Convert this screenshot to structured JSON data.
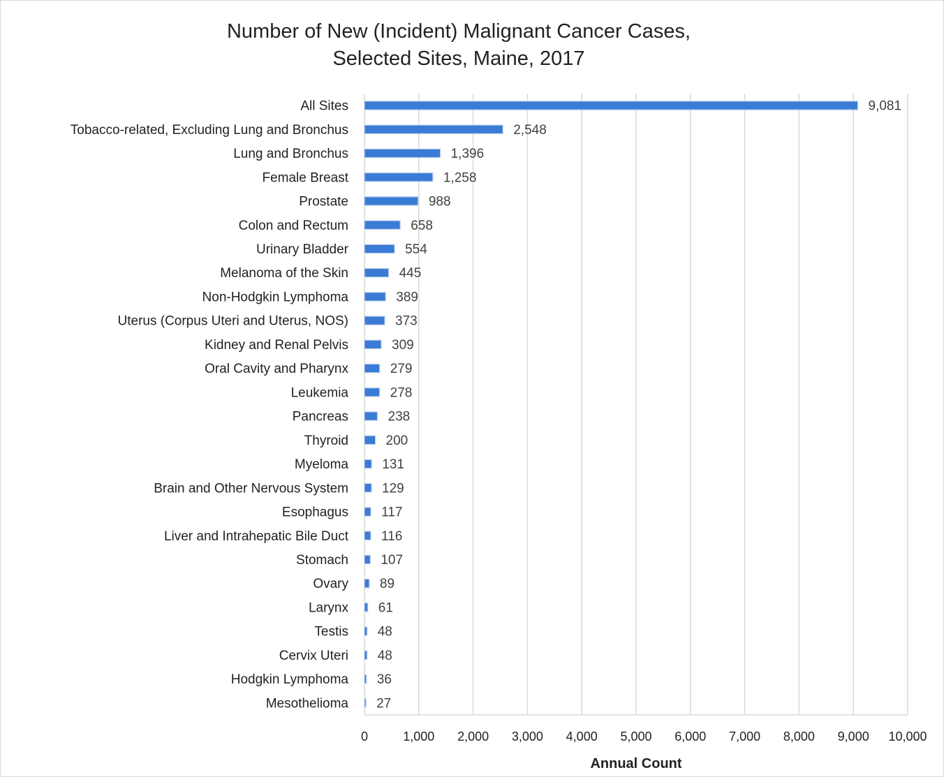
{
  "chart_data": {
    "type": "bar",
    "orientation": "horizontal",
    "title_lines": [
      "Number of New (Incident) Malignant Cancer Cases,",
      "Selected Sites, Maine, 2017"
    ],
    "xlabel": "Annual Count",
    "ylabel": "",
    "xlim": [
      0,
      10000
    ],
    "xticks": [
      0,
      1000,
      2000,
      3000,
      4000,
      5000,
      6000,
      7000,
      8000,
      9000,
      10000
    ],
    "xtick_labels": [
      "0",
      "1,000",
      "2,000",
      "3,000",
      "4,000",
      "5,000",
      "6,000",
      "7,000",
      "8,000",
      "9,000",
      "10,000"
    ],
    "grid": "vertical",
    "legend": "none",
    "bar_color": "#3a7bd5",
    "categories": [
      "All Sites",
      "Tobacco-related, Excluding Lung and Bronchus",
      "Lung and Bronchus",
      "Female Breast",
      "Prostate",
      "Colon and Rectum",
      "Urinary Bladder",
      "Melanoma of the Skin",
      "Non-Hodgkin Lymphoma",
      "Uterus (Corpus Uteri and Uterus, NOS)",
      "Kidney and Renal Pelvis",
      "Oral Cavity and Pharynx",
      "Leukemia",
      "Pancreas",
      "Thyroid",
      "Myeloma",
      "Brain and Other Nervous System",
      "Esophagus",
      "Liver and Intrahepatic Bile Duct",
      "Stomach",
      "Ovary",
      "Larynx",
      "Testis",
      "Cervix Uteri",
      "Hodgkin Lymphoma",
      "Mesothelioma"
    ],
    "values": [
      9081,
      2548,
      1396,
      1258,
      988,
      658,
      554,
      445,
      389,
      373,
      309,
      279,
      278,
      238,
      200,
      131,
      129,
      117,
      116,
      107,
      89,
      61,
      48,
      48,
      36,
      27
    ],
    "value_labels": [
      "9,081",
      "2,548",
      "1,396",
      "1,258",
      "988",
      "658",
      "554",
      "445",
      "389",
      "373",
      "309",
      "279",
      "278",
      "238",
      "200",
      "131",
      "129",
      "117",
      "116",
      "107",
      "89",
      "61",
      "48",
      "48",
      "36",
      "27"
    ]
  }
}
